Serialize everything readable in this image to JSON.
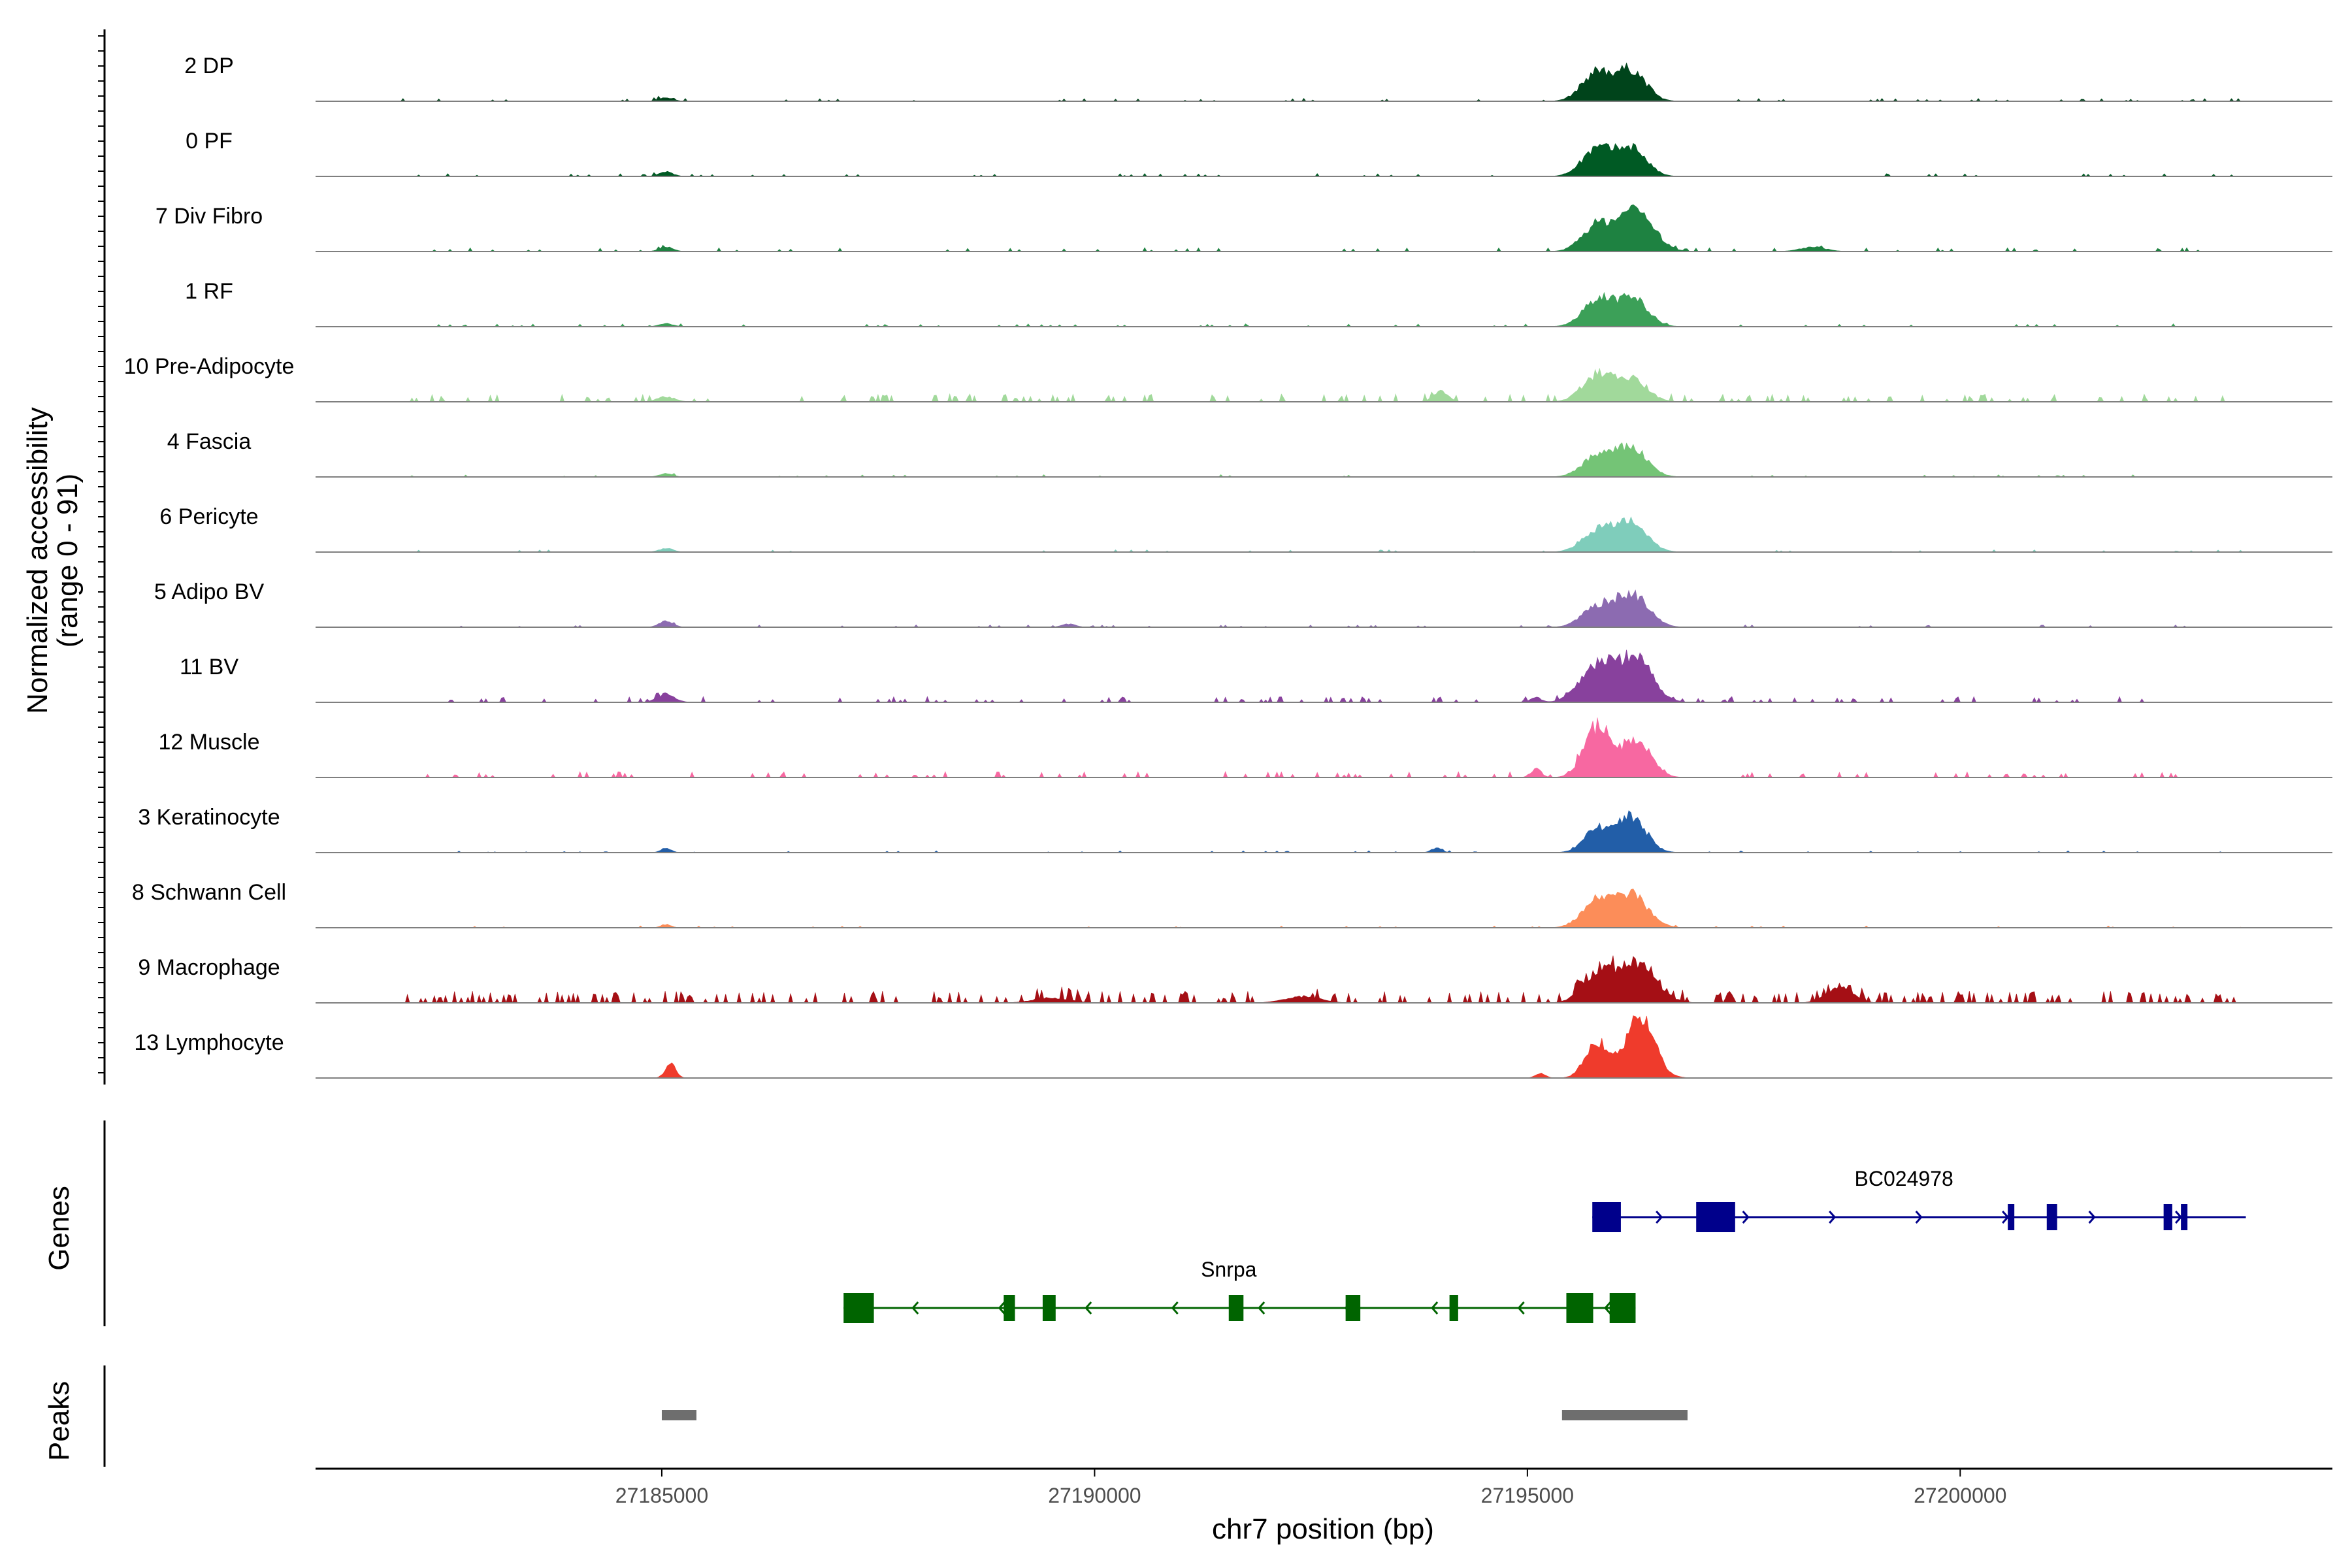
{
  "chart_data": {
    "type": "area",
    "title": "",
    "ylabel_line1": "Normalized accessibility",
    "ylabel_line2": "(range 0 - 91)",
    "y_range": [
      0,
      91
    ],
    "xlabel": "chr7 position (bp)",
    "xlim": [
      27181000,
      27204300
    ],
    "x_ticks": [
      27185000,
      27190000,
      27195000,
      27200000
    ],
    "x_tick_labels": [
      "27185000",
      "27190000",
      "27195000",
      "27200000"
    ],
    "panel_labels": {
      "genes": "Genes",
      "peaks": "Peaks"
    },
    "tracks": [
      {
        "name": "2 DP",
        "color": "#00441B",
        "peaks": [
          [
            27195800,
            0.45,
            170
          ],
          [
            27196200,
            0.48,
            170
          ],
          [
            27185050,
            0.06,
            80
          ]
        ],
        "noise": 0.015
      },
      {
        "name": "0 PF",
        "color": "#005A24",
        "peaks": [
          [
            27195800,
            0.42,
            170
          ],
          [
            27196200,
            0.45,
            170
          ],
          [
            27185050,
            0.07,
            80
          ]
        ],
        "noise": 0.015
      },
      {
        "name": "7 Div Fibro",
        "color": "#1E8241",
        "peaks": [
          [
            27195800,
            0.4,
            170
          ],
          [
            27196250,
            0.66,
            200
          ],
          [
            27185050,
            0.07,
            80
          ],
          [
            27198300,
            0.07,
            150
          ]
        ],
        "noise": 0.02
      },
      {
        "name": "1 RF",
        "color": "#3CA058",
        "peaks": [
          [
            27195800,
            0.38,
            170
          ],
          [
            27196200,
            0.45,
            180
          ],
          [
            27185050,
            0.05,
            80
          ]
        ],
        "noise": 0.015
      },
      {
        "name": "10 Pre-Adipocyte",
        "color": "#A1D99B",
        "peaks": [
          [
            27195800,
            0.4,
            170
          ],
          [
            27196200,
            0.35,
            180
          ],
          [
            27194000,
            0.18,
            80
          ],
          [
            27185050,
            0.08,
            100
          ]
        ],
        "noise": 0.04
      },
      {
        "name": "4 Fascia",
        "color": "#74C476",
        "peaks": [
          [
            27195800,
            0.32,
            170
          ],
          [
            27196200,
            0.46,
            180
          ],
          [
            27185050,
            0.05,
            80
          ]
        ],
        "noise": 0.012
      },
      {
        "name": "6 Pericyte",
        "color": "#7FCDBB",
        "peaks": [
          [
            27195800,
            0.34,
            170
          ],
          [
            27196200,
            0.48,
            180
          ],
          [
            27185050,
            0.06,
            80
          ]
        ],
        "noise": 0.012
      },
      {
        "name": "5 Adipo BV",
        "color": "#8C6BB1",
        "peaks": [
          [
            27195800,
            0.3,
            170
          ],
          [
            27196200,
            0.52,
            190
          ],
          [
            27185050,
            0.1,
            80
          ],
          [
            27189700,
            0.05,
            80
          ]
        ],
        "noise": 0.012
      },
      {
        "name": "11 BV",
        "color": "#88419D",
        "peaks": [
          [
            27195800,
            0.58,
            190
          ],
          [
            27196250,
            0.72,
            190
          ],
          [
            27185050,
            0.13,
            100
          ],
          [
            27195100,
            0.08,
            60
          ]
        ],
        "noise": 0.03
      },
      {
        "name": "12 Muscle",
        "color": "#F768A1",
        "peaks": [
          [
            27195800,
            0.78,
            150
          ],
          [
            27196250,
            0.6,
            170
          ],
          [
            27195100,
            0.14,
            60
          ]
        ],
        "noise": 0.03
      },
      {
        "name": "3 Keratinocyte",
        "color": "#225EA8",
        "peaks": [
          [
            27195800,
            0.36,
            150
          ],
          [
            27196200,
            0.56,
            170
          ],
          [
            27185050,
            0.07,
            60
          ],
          [
            27193950,
            0.07,
            60
          ]
        ],
        "noise": 0.01
      },
      {
        "name": "8 Schwann Cell",
        "color": "#FC8D59",
        "peaks": [
          [
            27195800,
            0.4,
            170
          ],
          [
            27196200,
            0.52,
            190
          ],
          [
            27185050,
            0.05,
            60
          ]
        ],
        "noise": 0.01
      },
      {
        "name": "9 Macrophage",
        "color": "#A50F15",
        "peaks": [
          [
            27195800,
            0.4,
            170
          ],
          [
            27196250,
            0.62,
            220
          ],
          [
            27198600,
            0.24,
            150
          ],
          [
            27189500,
            0.08,
            200
          ],
          [
            27192400,
            0.1,
            200
          ]
        ],
        "noise": 0.06
      },
      {
        "name": "13 Lymphocyte",
        "color": "#EF3B2C",
        "peaks": [
          [
            27195800,
            0.56,
            130
          ],
          [
            27196300,
            0.92,
            170
          ],
          [
            27185100,
            0.22,
            60
          ],
          [
            27195150,
            0.07,
            60
          ]
        ],
        "noise": 0.0
      }
    ],
    "genes": [
      {
        "name": "BC024978",
        "strand": "+",
        "color": "#00008B",
        "start": 27195750,
        "end": 27203300,
        "exons": [
          [
            27195750,
            27196080,
            "big"
          ],
          [
            27196950,
            27197400,
            "big"
          ],
          [
            27200550,
            27200620,
            "small"
          ],
          [
            27201000,
            27201120,
            "small"
          ],
          [
            27202350,
            27202450,
            "small"
          ],
          [
            27202550,
            27202620,
            "small"
          ]
        ]
      },
      {
        "name": "Snrpa",
        "strand": "-",
        "color": "#006400",
        "start": 27187100,
        "end": 27196250,
        "exons": [
          [
            27187100,
            27187450,
            "big"
          ],
          [
            27188950,
            27189080,
            "small"
          ],
          [
            27189400,
            27189550,
            "small"
          ],
          [
            27191550,
            27191720,
            "small"
          ],
          [
            27192900,
            27193070,
            "small"
          ],
          [
            27194100,
            27194200,
            "small"
          ],
          [
            27195450,
            27195760,
            "big"
          ],
          [
            27195950,
            27196250,
            "big"
          ]
        ]
      }
    ],
    "peak_regions": [
      [
        27185000,
        27185400
      ],
      [
        27195400,
        27196850
      ]
    ]
  }
}
